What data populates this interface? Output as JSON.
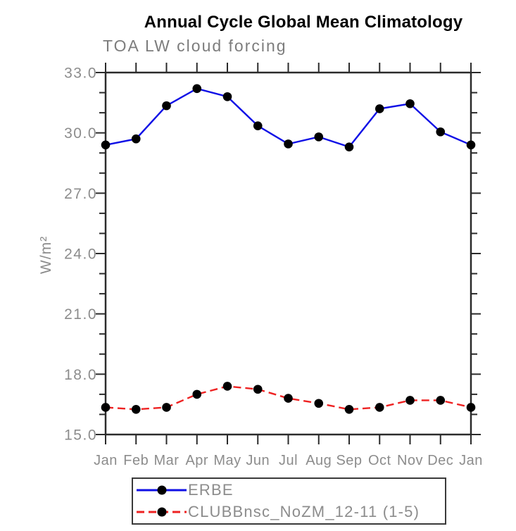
{
  "title": "Annual Cycle Global Mean Climatology",
  "subtitle": "TOA LW cloud forcing",
  "colors": {
    "axis": "#2b2b2b",
    "tick_label": "#8c8c8c",
    "subtitle": "#7d7d7d",
    "marker": "#000000",
    "erbe_blue": "#0f0fe6",
    "clubb_red": "#ee2222",
    "legend_border": "#3a3a3a"
  },
  "chart_data": {
    "type": "line",
    "categories": [
      "Jan",
      "Feb",
      "Mar",
      "Apr",
      "May",
      "Jun",
      "Jul",
      "Aug",
      "Sep",
      "Oct",
      "Nov",
      "Dec",
      "Jan"
    ],
    "series": [
      {
        "name": "ERBE",
        "color": "#0f0fe6",
        "style": "solid",
        "marker": "black-circle",
        "values": [
          29.4,
          29.7,
          31.35,
          32.2,
          31.8,
          30.35,
          29.45,
          29.8,
          29.3,
          31.2,
          31.45,
          30.05,
          29.4
        ]
      },
      {
        "name": "CLUBBnsc_NoZM_12-11 (1-5)",
        "color": "#ee2222",
        "style": "dashed",
        "marker": "black-circle",
        "values": [
          16.35,
          16.25,
          16.35,
          17.0,
          17.4,
          17.25,
          16.8,
          16.55,
          16.25,
          16.35,
          16.7,
          16.7,
          16.35
        ]
      }
    ],
    "title": "Annual Cycle Global Mean Climatology",
    "subtitle": "TOA LW cloud forcing",
    "xlabel": "",
    "ylabel": "W/m²",
    "ylim": [
      15.0,
      33.0
    ],
    "ytick_major_interval": 3.0,
    "ytick_minor_interval": 1.0,
    "ytick_labels": [
      "33.0",
      "30.0",
      "27.0",
      "24.0",
      "21.0",
      "18.0",
      "15.0"
    ],
    "grid": false,
    "legend_position": "bottom",
    "ticks_direction": "out"
  }
}
